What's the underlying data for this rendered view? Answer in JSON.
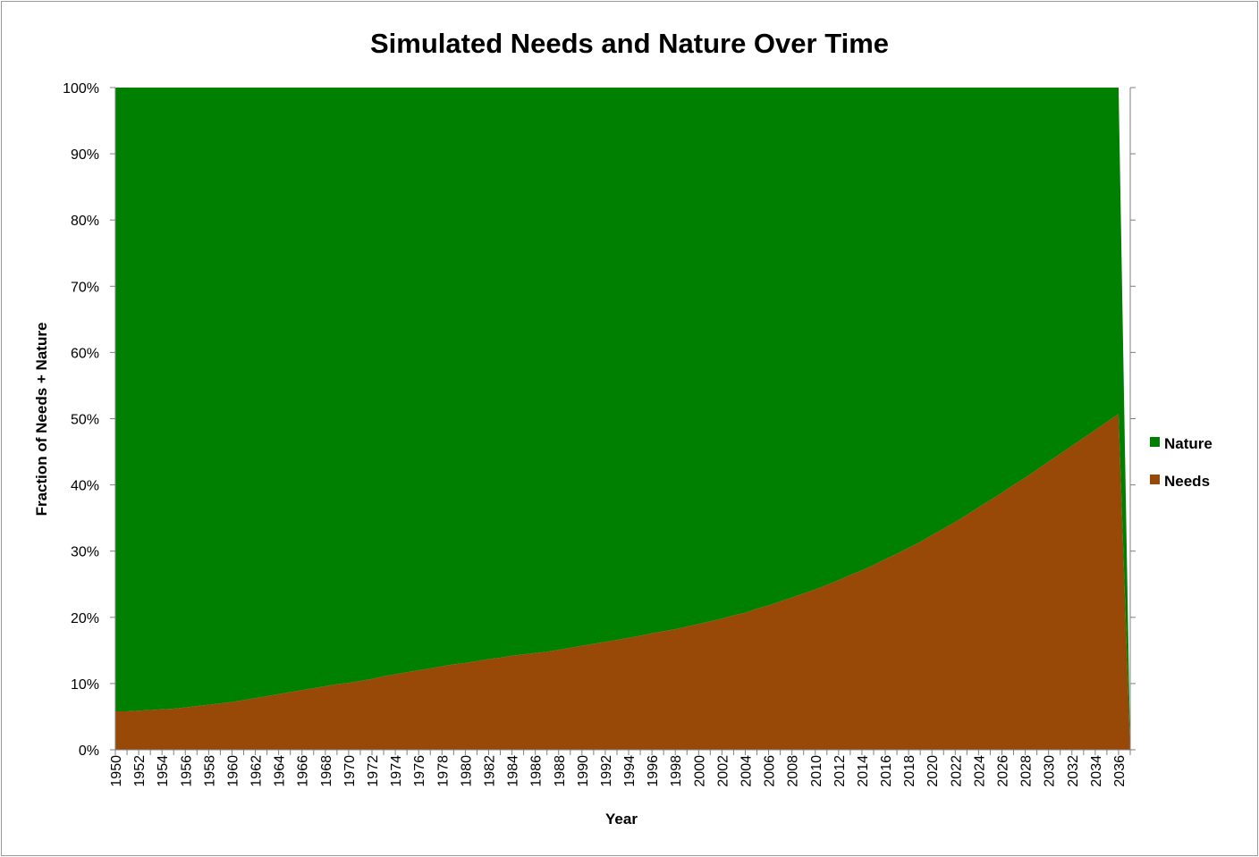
{
  "chart_data": {
    "type": "area",
    "stacked": true,
    "title": "Simulated Needs and Nature Over Time",
    "xlabel": "Year",
    "ylabel": "Fraction of Needs + Nature",
    "ylim": [
      0,
      1
    ],
    "y_ticks": [
      "0%",
      "10%",
      "20%",
      "30%",
      "40%",
      "50%",
      "60%",
      "70%",
      "80%",
      "90%",
      "100%"
    ],
    "x": [
      1950,
      1951,
      1952,
      1953,
      1954,
      1955,
      1956,
      1957,
      1958,
      1959,
      1960,
      1961,
      1962,
      1963,
      1964,
      1965,
      1966,
      1967,
      1968,
      1969,
      1970,
      1971,
      1972,
      1973,
      1974,
      1975,
      1976,
      1977,
      1978,
      1979,
      1980,
      1981,
      1982,
      1983,
      1984,
      1985,
      1986,
      1987,
      1988,
      1989,
      1990,
      1991,
      1992,
      1993,
      1994,
      1995,
      1996,
      1997,
      1998,
      1999,
      2000,
      2001,
      2002,
      2003,
      2004,
      2005,
      2006,
      2007,
      2008,
      2009,
      2010,
      2011,
      2012,
      2013,
      2014,
      2015,
      2016,
      2017,
      2018,
      2019,
      2020,
      2021,
      2022,
      2023,
      2024,
      2025,
      2026,
      2027,
      2028,
      2029,
      2030,
      2031,
      2032,
      2033,
      2034,
      2035,
      2036,
      2037
    ],
    "x_tick_labels": [
      "1950",
      "1952",
      "1954",
      "1956",
      "1958",
      "1960",
      "1962",
      "1964",
      "1966",
      "1968",
      "1970",
      "1972",
      "1974",
      "1976",
      "1978",
      "1980",
      "1982",
      "1984",
      "1986",
      "1988",
      "1990",
      "1992",
      "1994",
      "1996",
      "1998",
      "2000",
      "2002",
      "2004",
      "2006",
      "2008",
      "2010",
      "2012",
      "2014",
      "2016",
      "2018",
      "2020",
      "2022",
      "2024",
      "2026",
      "2028",
      "2030",
      "2032",
      "2034",
      "2036"
    ],
    "grid": false,
    "legend": "right",
    "series": [
      {
        "name": "Needs",
        "color": "#984807",
        "values": [
          0.058,
          0.058,
          0.059,
          0.06,
          0.061,
          0.062,
          0.064,
          0.066,
          0.068,
          0.07,
          0.072,
          0.075,
          0.078,
          0.081,
          0.084,
          0.087,
          0.09,
          0.093,
          0.096,
          0.099,
          0.101,
          0.104,
          0.107,
          0.111,
          0.114,
          0.117,
          0.12,
          0.123,
          0.126,
          0.129,
          0.131,
          0.134,
          0.137,
          0.139,
          0.142,
          0.144,
          0.146,
          0.148,
          0.151,
          0.154,
          0.157,
          0.16,
          0.163,
          0.166,
          0.169,
          0.172,
          0.176,
          0.179,
          0.182,
          0.186,
          0.19,
          0.194,
          0.198,
          0.203,
          0.207,
          0.213,
          0.218,
          0.224,
          0.23,
          0.236,
          0.242,
          0.249,
          0.256,
          0.264,
          0.271,
          0.279,
          0.288,
          0.296,
          0.305,
          0.314,
          0.324,
          0.334,
          0.344,
          0.355,
          0.366,
          0.377,
          0.388,
          0.4,
          0.411,
          0.423,
          0.435,
          0.447,
          0.459,
          0.471,
          0.483,
          0.495,
          0.507,
          0.0
        ]
      },
      {
        "name": "Nature",
        "color": "#008000",
        "values": [
          0.942,
          0.942,
          0.941,
          0.94,
          0.939,
          0.938,
          0.936,
          0.934,
          0.932,
          0.93,
          0.928,
          0.925,
          0.922,
          0.919,
          0.916,
          0.913,
          0.91,
          0.907,
          0.904,
          0.901,
          0.899,
          0.896,
          0.893,
          0.889,
          0.886,
          0.883,
          0.88,
          0.877,
          0.874,
          0.871,
          0.869,
          0.866,
          0.863,
          0.861,
          0.858,
          0.856,
          0.854,
          0.852,
          0.849,
          0.846,
          0.843,
          0.84,
          0.837,
          0.834,
          0.831,
          0.828,
          0.824,
          0.821,
          0.818,
          0.814,
          0.81,
          0.806,
          0.802,
          0.797,
          0.793,
          0.787,
          0.782,
          0.776,
          0.77,
          0.764,
          0.758,
          0.751,
          0.744,
          0.736,
          0.729,
          0.721,
          0.712,
          0.704,
          0.695,
          0.686,
          0.676,
          0.666,
          0.656,
          0.645,
          0.634,
          0.623,
          0.612,
          0.6,
          0.589,
          0.577,
          0.565,
          0.553,
          0.541,
          0.529,
          0.517,
          0.505,
          0.493,
          0.0
        ]
      }
    ]
  }
}
